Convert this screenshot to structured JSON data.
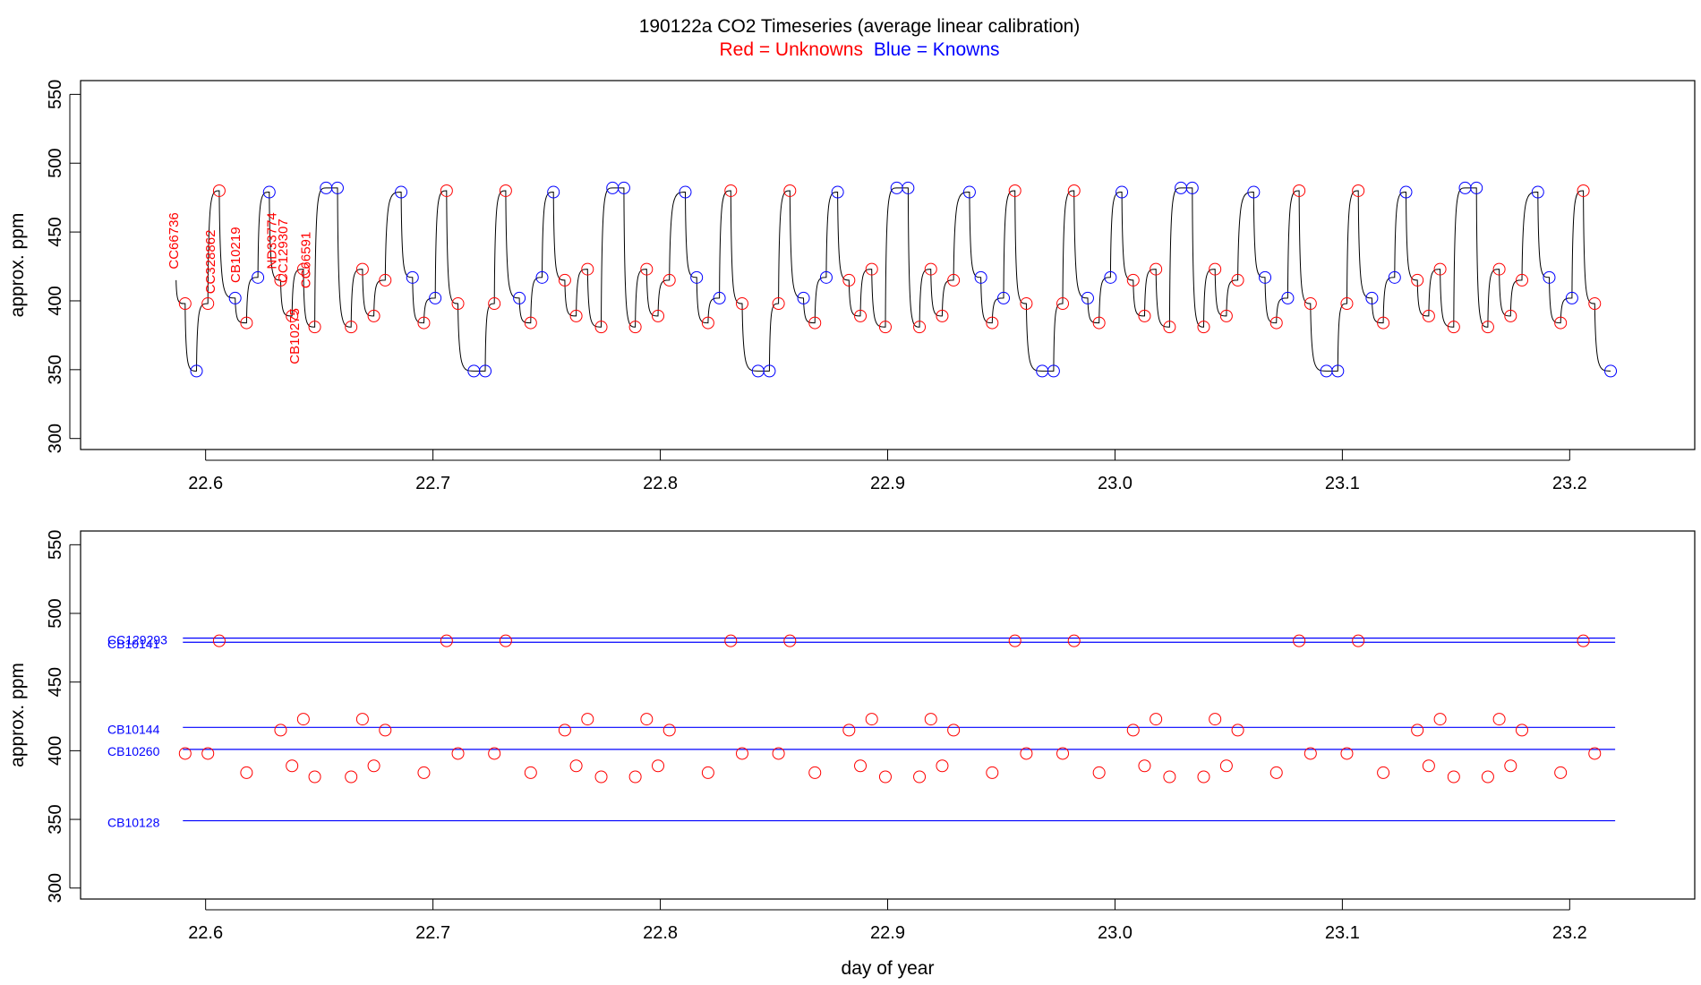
{
  "title": "190122a   CO2 Timeseries (average linear calibration)",
  "subtitle_red": "Red = Unknowns",
  "subtitle_blue": "Blue = Knowns",
  "colors": {
    "unknown": "#ff0000",
    "known": "#0000ff",
    "trace": "#000000",
    "axis": "#000000"
  },
  "chart_data": [
    {
      "type": "line",
      "ylabel": "approx. ppm",
      "xlabel": "",
      "xlim": [
        22.545,
        23.255
      ],
      "ylim": [
        292,
        560
      ],
      "x_ticks": [
        "22.6",
        "22.7",
        "22.8",
        "22.9",
        "23.0",
        "23.1",
        "23.2"
      ],
      "y_ticks": [
        "300",
        "350",
        "400",
        "450",
        "500",
        "550"
      ],
      "trace_start": {
        "x": 22.587,
        "y": 415
      },
      "knowns": [
        [
          22.596,
          349
        ],
        [
          22.613,
          402
        ],
        [
          22.623,
          417
        ],
        [
          22.628,
          479
        ],
        [
          22.653,
          482
        ],
        [
          22.658,
          482
        ],
        [
          22.686,
          479
        ],
        [
          22.691,
          417
        ],
        [
          22.701,
          402
        ],
        [
          22.718,
          349
        ],
        [
          22.723,
          349
        ],
        [
          22.738,
          402
        ],
        [
          22.748,
          417
        ],
        [
          22.753,
          479
        ],
        [
          22.779,
          482
        ],
        [
          22.784,
          482
        ],
        [
          22.811,
          479
        ],
        [
          22.816,
          417
        ],
        [
          22.826,
          402
        ],
        [
          22.843,
          349
        ],
        [
          22.848,
          349
        ],
        [
          22.863,
          402
        ],
        [
          22.873,
          417
        ],
        [
          22.878,
          479
        ],
        [
          22.904,
          482
        ],
        [
          22.909,
          482
        ],
        [
          22.936,
          479
        ],
        [
          22.941,
          417
        ],
        [
          22.951,
          402
        ],
        [
          22.968,
          349
        ],
        [
          22.973,
          349
        ],
        [
          22.988,
          402
        ],
        [
          22.998,
          417
        ],
        [
          23.003,
          479
        ],
        [
          23.029,
          482
        ],
        [
          23.034,
          482
        ],
        [
          23.061,
          479
        ],
        [
          23.066,
          417
        ],
        [
          23.076,
          402
        ],
        [
          23.093,
          349
        ],
        [
          23.098,
          349
        ],
        [
          23.113,
          402
        ],
        [
          23.123,
          417
        ],
        [
          23.128,
          479
        ],
        [
          23.154,
          482
        ],
        [
          23.159,
          482
        ],
        [
          23.186,
          479
        ],
        [
          23.191,
          417
        ],
        [
          23.201,
          402
        ],
        [
          23.218,
          349
        ]
      ],
      "unknowns": [
        [
          22.591,
          398
        ],
        [
          22.601,
          398
        ],
        [
          22.606,
          480
        ],
        [
          22.618,
          384
        ],
        [
          22.633,
          415
        ],
        [
          22.638,
          389
        ],
        [
          22.643,
          423
        ],
        [
          22.648,
          381
        ],
        [
          22.664,
          381
        ],
        [
          22.669,
          423
        ],
        [
          22.674,
          389
        ],
        [
          22.679,
          415
        ],
        [
          22.696,
          384
        ],
        [
          22.706,
          480
        ],
        [
          22.711,
          398
        ],
        [
          22.727,
          398
        ],
        [
          22.732,
          480
        ],
        [
          22.743,
          384
        ],
        [
          22.758,
          415
        ],
        [
          22.763,
          389
        ],
        [
          22.768,
          423
        ],
        [
          22.774,
          381
        ],
        [
          22.789,
          381
        ],
        [
          22.794,
          423
        ],
        [
          22.799,
          389
        ],
        [
          22.804,
          415
        ],
        [
          22.821,
          384
        ],
        [
          22.831,
          480
        ],
        [
          22.836,
          398
        ],
        [
          22.852,
          398
        ],
        [
          22.857,
          480
        ],
        [
          22.868,
          384
        ],
        [
          22.883,
          415
        ],
        [
          22.888,
          389
        ],
        [
          22.893,
          423
        ],
        [
          22.899,
          381
        ],
        [
          22.914,
          381
        ],
        [
          22.919,
          423
        ],
        [
          22.924,
          389
        ],
        [
          22.929,
          415
        ],
        [
          22.946,
          384
        ],
        [
          22.956,
          480
        ],
        [
          22.961,
          398
        ],
        [
          22.977,
          398
        ],
        [
          22.982,
          480
        ],
        [
          22.993,
          384
        ],
        [
          23.008,
          415
        ],
        [
          23.013,
          389
        ],
        [
          23.018,
          423
        ],
        [
          23.024,
          381
        ],
        [
          23.039,
          381
        ],
        [
          23.044,
          423
        ],
        [
          23.049,
          389
        ],
        [
          23.054,
          415
        ],
        [
          23.071,
          384
        ],
        [
          23.081,
          480
        ],
        [
          23.086,
          398
        ],
        [
          23.102,
          398
        ],
        [
          23.107,
          480
        ],
        [
          23.118,
          384
        ],
        [
          23.133,
          415
        ],
        [
          23.138,
          389
        ],
        [
          23.143,
          423
        ],
        [
          23.149,
          381
        ],
        [
          23.164,
          381
        ],
        [
          23.169,
          423
        ],
        [
          23.174,
          389
        ],
        [
          23.179,
          415
        ],
        [
          23.196,
          384
        ],
        [
          23.206,
          480
        ],
        [
          23.211,
          398
        ]
      ],
      "annotations": [
        {
          "text": "CC66736",
          "x": 22.588,
          "y": 423
        },
        {
          "text": "CC328862",
          "x": 22.604,
          "y": 405
        },
        {
          "text": "CB10219",
          "x": 22.615,
          "y": 413
        },
        {
          "text": "ND33774",
          "x": 22.631,
          "y": 423
        },
        {
          "text": "CC129307",
          "x": 22.636,
          "y": 413
        },
        {
          "text": "CB10275",
          "x": 22.641,
          "y": 354
        },
        {
          "text": "CC66591",
          "x": 22.646,
          "y": 409
        }
      ]
    },
    {
      "type": "scatter",
      "ylabel": "approx. ppm",
      "xlabel": "day of year",
      "xlim": [
        22.545,
        23.255
      ],
      "ylim": [
        292,
        560
      ],
      "x_ticks": [
        "22.6",
        "22.7",
        "22.8",
        "22.9",
        "23.0",
        "23.1",
        "23.2"
      ],
      "y_ticks": [
        "300",
        "350",
        "400",
        "450",
        "500",
        "550"
      ],
      "reference_lines": [
        {
          "label": "CC129293",
          "y": 482
        },
        {
          "label": "CB10141",
          "y": 479
        },
        {
          "label": "CB10144",
          "y": 417
        },
        {
          "label": "CB10260",
          "y": 401
        },
        {
          "label": "CB10128",
          "y": 349
        }
      ],
      "line_x_range": [
        22.59,
        23.22
      ],
      "unknowns": [
        [
          22.591,
          398
        ],
        [
          22.601,
          398
        ],
        [
          22.606,
          480
        ],
        [
          22.618,
          384
        ],
        [
          22.633,
          415
        ],
        [
          22.638,
          389
        ],
        [
          22.643,
          423
        ],
        [
          22.648,
          381
        ],
        [
          22.664,
          381
        ],
        [
          22.669,
          423
        ],
        [
          22.674,
          389
        ],
        [
          22.679,
          415
        ],
        [
          22.696,
          384
        ],
        [
          22.706,
          480
        ],
        [
          22.711,
          398
        ],
        [
          22.727,
          398
        ],
        [
          22.732,
          480
        ],
        [
          22.743,
          384
        ],
        [
          22.758,
          415
        ],
        [
          22.763,
          389
        ],
        [
          22.768,
          423
        ],
        [
          22.774,
          381
        ],
        [
          22.789,
          381
        ],
        [
          22.794,
          423
        ],
        [
          22.799,
          389
        ],
        [
          22.804,
          415
        ],
        [
          22.821,
          384
        ],
        [
          22.831,
          480
        ],
        [
          22.836,
          398
        ],
        [
          22.852,
          398
        ],
        [
          22.857,
          480
        ],
        [
          22.868,
          384
        ],
        [
          22.883,
          415
        ],
        [
          22.888,
          389
        ],
        [
          22.893,
          423
        ],
        [
          22.899,
          381
        ],
        [
          22.914,
          381
        ],
        [
          22.919,
          423
        ],
        [
          22.924,
          389
        ],
        [
          22.929,
          415
        ],
        [
          22.946,
          384
        ],
        [
          22.956,
          480
        ],
        [
          22.961,
          398
        ],
        [
          22.977,
          398
        ],
        [
          22.982,
          480
        ],
        [
          22.993,
          384
        ],
        [
          23.008,
          415
        ],
        [
          23.013,
          389
        ],
        [
          23.018,
          423
        ],
        [
          23.024,
          381
        ],
        [
          23.039,
          381
        ],
        [
          23.044,
          423
        ],
        [
          23.049,
          389
        ],
        [
          23.054,
          415
        ],
        [
          23.071,
          384
        ],
        [
          23.081,
          480
        ],
        [
          23.086,
          398
        ],
        [
          23.102,
          398
        ],
        [
          23.107,
          480
        ],
        [
          23.118,
          384
        ],
        [
          23.133,
          415
        ],
        [
          23.138,
          389
        ],
        [
          23.143,
          423
        ],
        [
          23.149,
          381
        ],
        [
          23.164,
          381
        ],
        [
          23.169,
          423
        ],
        [
          23.174,
          389
        ],
        [
          23.179,
          415
        ],
        [
          23.196,
          384
        ],
        [
          23.206,
          480
        ],
        [
          23.211,
          398
        ]
      ]
    }
  ]
}
